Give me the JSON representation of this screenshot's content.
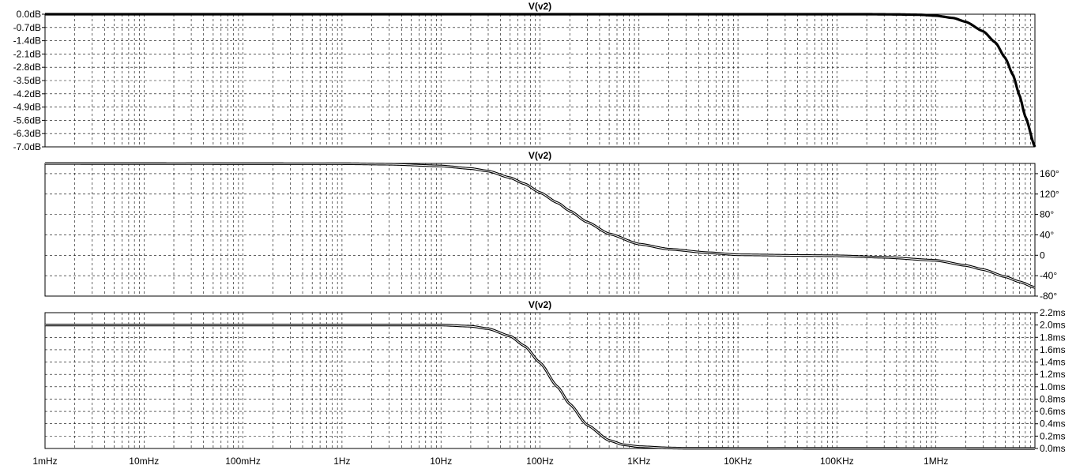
{
  "chart_data": [
    {
      "type": "line",
      "title": "V(v2)",
      "x_scale": "log",
      "xlim": [
        0.001,
        10000000
      ],
      "ylim": [
        -7,
        0
      ],
      "y_tick_labels": [
        "0.0dB",
        "-0.7dB",
        "-1.4dB",
        "-2.1dB",
        "-2.8dB",
        "-3.5dB",
        "-4.2dB",
        "-4.9dB",
        "-5.6dB",
        "-6.3dB",
        "-7.0dB"
      ],
      "y_tick_values": [
        0,
        -0.7,
        -1.4,
        -2.1,
        -2.8,
        -3.5,
        -4.2,
        -4.9,
        -5.6,
        -6.3,
        -7.0
      ],
      "y_axis_side": "left",
      "grid": true,
      "series": [
        {
          "x": [
            0.001,
            1000,
            200000,
            400000,
            700000,
            1000000,
            1500000,
            2000000,
            3000000,
            4000000,
            5000000,
            6000000,
            7000000,
            8000000,
            10000000
          ],
          "y": [
            0,
            0,
            0,
            -0.01,
            -0.03,
            -0.08,
            -0.2,
            -0.4,
            -0.9,
            -1.5,
            -2.3,
            -3.2,
            -4.3,
            -5.4,
            -7.0
          ]
        }
      ]
    },
    {
      "type": "line",
      "title": "V(v2)",
      "x_scale": "log",
      "xlim": [
        0.001,
        10000000
      ],
      "ylim": [
        -80,
        180
      ],
      "y_tick_labels": [
        "160°",
        "120°",
        "80°",
        "40°",
        "0",
        "-40°",
        "-80°"
      ],
      "y_tick_values": [
        160,
        120,
        80,
        40,
        0,
        -40,
        -80
      ],
      "y_axis_side": "right",
      "grid": true,
      "series": [
        {
          "x": [
            0.001,
            1,
            3,
            10,
            20,
            30,
            50,
            70,
            100,
            150,
            200,
            300,
            500,
            1000,
            2000,
            5000,
            10000,
            50000,
            100000,
            300000,
            1000000,
            2000000,
            3000000,
            5000000,
            7000000,
            10000000
          ],
          "y": [
            179.9,
            179.5,
            178.5,
            175,
            170,
            165,
            152,
            140,
            123,
            103,
            87,
            65,
            42,
            22,
            12,
            5,
            1,
            -0.5,
            -1,
            -4,
            -10,
            -20,
            -28,
            -42,
            -52,
            -63
          ]
        }
      ]
    },
    {
      "type": "line",
      "title": "V(v2)",
      "x_scale": "log",
      "xlim": [
        0.001,
        10000000
      ],
      "ylim": [
        0,
        2.2
      ],
      "y_tick_labels": [
        "2.2ms",
        "2.0ms",
        "1.8ms",
        "1.6ms",
        "1.4ms",
        "1.2ms",
        "1.0ms",
        "0.8ms",
        "0.6ms",
        "0.4ms",
        "0.2ms",
        "0.0ms"
      ],
      "y_tick_values": [
        2.2,
        2.0,
        1.8,
        1.6,
        1.4,
        1.2,
        1.0,
        0.8,
        0.6,
        0.4,
        0.2,
        0.0
      ],
      "y_axis_side": "right",
      "grid": true,
      "series": [
        {
          "x": [
            0.001,
            1,
            10,
            20,
            30,
            50,
            70,
            100,
            150,
            200,
            300,
            500,
            700,
            1000,
            2000,
            3000,
            10000000
          ],
          "y": [
            2.0,
            2.0,
            2.0,
            1.98,
            1.94,
            1.82,
            1.66,
            1.39,
            1.0,
            0.72,
            0.38,
            0.13,
            0.06,
            0.03,
            0.008,
            0.003,
            0.0
          ]
        }
      ]
    }
  ],
  "x_tick_labels": [
    "1mHz",
    "10mHz",
    "100mHz",
    "1Hz",
    "10Hz",
    "100Hz",
    "1KHz",
    "10KHz",
    "100KHz",
    "1MHz"
  ],
  "x_tick_values": [
    0.001,
    0.01,
    0.1,
    1,
    10,
    100,
    1000,
    10000,
    100000,
    1000000
  ]
}
